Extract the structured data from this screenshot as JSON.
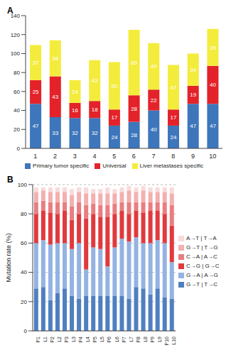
{
  "chart_data": [
    {
      "type": "bar",
      "title": "A",
      "categories": [
        "1",
        "2",
        "3",
        "4",
        "5",
        "6",
        "7",
        "8",
        "9",
        "10"
      ],
      "series": [
        {
          "name": "Primary tumor specific",
          "color": "#3d76bb",
          "values": [
            47,
            33,
            32,
            32,
            24,
            28,
            40,
            24,
            47,
            47
          ]
        },
        {
          "name": "Universal",
          "color": "#e42229",
          "values": [
            25,
            43,
            16,
            18,
            17,
            28,
            22,
            17,
            19,
            40
          ]
        },
        {
          "name": "Liver metastases specific",
          "color": "#f4ec3c",
          "values": [
            37,
            38,
            24,
            43,
            50,
            69,
            49,
            47,
            34,
            39
          ]
        }
      ],
      "stacked": true,
      "data_labels": true,
      "ylim": [
        0,
        140
      ],
      "yticks": [
        0,
        20,
        40,
        60,
        80,
        100,
        120,
        140
      ],
      "legend": "bottom"
    },
    {
      "type": "bar",
      "title": "B",
      "y_label": "Mutation rate (%)",
      "categories": [
        "P1",
        "L1",
        "P2",
        "L2",
        "P3",
        "L3",
        "P4",
        "L4",
        "P5",
        "L5",
        "P6",
        "L6",
        "P7",
        "L7",
        "P8",
        "L8",
        "P9",
        "L9",
        "P10",
        "L10"
      ],
      "series": [
        {
          "name": "G→T | T→C",
          "color": "#4f7fc0",
          "values": [
            29,
            30,
            21,
            26,
            29,
            24,
            22,
            24,
            24,
            24,
            24,
            24,
            24,
            22,
            30,
            29,
            25,
            29,
            23,
            22
          ]
        },
        {
          "name": "G→A | A→G",
          "color": "#93b3e2",
          "values": [
            31,
            32,
            38,
            34,
            31,
            32,
            38,
            18,
            33,
            32,
            20,
            33,
            39,
            39,
            34,
            31,
            35,
            33,
            37,
            25
          ]
        },
        {
          "name": "C→G | G→C",
          "color": "#e03a3e",
          "values": [
            20,
            20,
            22,
            20,
            22,
            20,
            20,
            35,
            23,
            22,
            34,
            23,
            19,
            19,
            18,
            21,
            22,
            20,
            20,
            25
          ]
        },
        {
          "name": "C→A | A→C",
          "color": "#ea7d80",
          "values": [
            8,
            7,
            7,
            8,
            6,
            9,
            8,
            9,
            7,
            8,
            8,
            7,
            6,
            8,
            6,
            7,
            6,
            6,
            8,
            14
          ]
        },
        {
          "name": "G→T | T→G",
          "color": "#f2b0b0",
          "values": [
            7,
            7,
            7,
            7,
            7,
            8,
            7,
            8,
            7,
            8,
            8,
            7,
            7,
            8,
            7,
            8,
            7,
            7,
            7,
            8
          ]
        },
        {
          "name": "A→T | T→A",
          "color": "#f8dada",
          "values": [
            3,
            2,
            3,
            3,
            3,
            4,
            3,
            4,
            3,
            3,
            4,
            3,
            3,
            3,
            3,
            3,
            3,
            3,
            3,
            4
          ]
        }
      ],
      "stacked": true,
      "ylim": [
        0,
        100
      ],
      "yticks": [
        0,
        20,
        40,
        60,
        80,
        100
      ],
      "grid": true,
      "legend": "right"
    }
  ]
}
